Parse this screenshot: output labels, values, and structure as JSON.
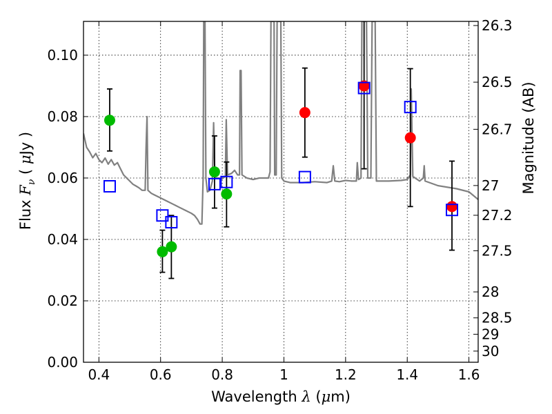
{
  "chart_data": {
    "type": "scatter",
    "xlabel_text": "Wavelength",
    "xlabel_symbol": "λ",
    "xlabel_unit_open": "(",
    "xlabel_unit_mu": "μ",
    "xlabel_unit_rest": "m)",
    "ylabel_text": "Flux",
    "ylabel_symbol": "F",
    "ylabel_sub": "ν",
    "ylabel_unit_open": "(",
    "ylabel_unit_mu": "μ",
    "ylabel_unit_rest": "Jy )",
    "y2label": "Magnitude (AB)",
    "xlim": [
      0.35,
      1.63
    ],
    "ylim": [
      0.0,
      0.111
    ],
    "grid": true,
    "x_ticks": [
      0.4,
      0.6,
      0.8,
      1.0,
      1.2,
      1.4,
      1.6
    ],
    "x_tick_labels": [
      "0.4",
      "0.6",
      "0.8",
      "1",
      "1.2",
      "1.4",
      "1.6"
    ],
    "y_ticks": [
      0.0,
      0.02,
      0.04,
      0.06,
      0.08,
      0.1
    ],
    "y_tick_labels": [
      "0.00",
      "0.02",
      "0.04",
      "0.06",
      "0.08",
      "0.10"
    ],
    "y2_ticks": [
      {
        "label": "26.3",
        "mag": 26.3
      },
      {
        "label": "26.5",
        "mag": 26.5
      },
      {
        "label": "26.7",
        "mag": 26.7
      },
      {
        "label": "27",
        "mag": 27.0
      },
      {
        "label": "27.2",
        "mag": 27.2
      },
      {
        "label": "27.5",
        "mag": 27.5
      },
      {
        "label": "28",
        "mag": 28.0
      },
      {
        "label": "28.5",
        "mag": 28.5
      },
      {
        "label": "29",
        "mag": 29.0
      },
      {
        "label": "30",
        "mag": 30.0
      }
    ],
    "colors": {
      "green": "#00bb00",
      "red": "#ff0000",
      "model_box": "#0000ff",
      "spectrum": "#808080",
      "errorbar": "#000000"
    },
    "series": [
      {
        "points": [
          {
            "x": 0.435,
            "y": 0.0788,
            "err_lo": 0.0688,
            "err_hi": 0.089
          },
          {
            "x": 0.606,
            "y": 0.036,
            "err_lo": 0.0293,
            "err_hi": 0.043
          },
          {
            "x": 0.635,
            "y": 0.0376,
            "err_lo": 0.0273,
            "err_hi": 0.0478
          },
          {
            "x": 0.775,
            "y": 0.062,
            "err_lo": 0.0502,
            "err_hi": 0.0737
          },
          {
            "x": 0.814,
            "y": 0.0548,
            "err_lo": 0.0441,
            "err_hi": 0.0652
          }
        ]
      },
      {
        "points": [
          {
            "x": 1.068,
            "y": 0.0813,
            "err_lo": 0.0668,
            "err_hi": 0.0958
          },
          {
            "x": 1.26,
            "y": 0.09,
            "err_lo": 0.063,
            "err_hi": 0.112
          },
          {
            "x": 1.41,
            "y": 0.0731,
            "err_lo": 0.0507,
            "err_hi": 0.0956
          },
          {
            "x": 1.545,
            "y": 0.0507,
            "err_lo": 0.0365,
            "err_hi": 0.0655
          }
        ]
      },
      {
        "points": [
          {
            "x": 0.435,
            "y": 0.0573
          },
          {
            "x": 0.606,
            "y": 0.0478
          },
          {
            "x": 0.635,
            "y": 0.0456
          },
          {
            "x": 0.775,
            "y": 0.058
          },
          {
            "x": 0.814,
            "y": 0.0587
          },
          {
            "x": 1.068,
            "y": 0.0603
          },
          {
            "x": 1.26,
            "y": 0.0893
          },
          {
            "x": 1.41,
            "y": 0.0831
          },
          {
            "x": 1.545,
            "y": 0.0496
          }
        ]
      }
    ],
    "spectrum": [
      [
        0.35,
        0.0745
      ],
      [
        0.36,
        0.07
      ],
      [
        0.37,
        0.0685
      ],
      [
        0.38,
        0.0666
      ],
      [
        0.39,
        0.068
      ],
      [
        0.4,
        0.066
      ],
      [
        0.41,
        0.065
      ],
      [
        0.42,
        0.0665
      ],
      [
        0.43,
        0.0645
      ],
      [
        0.44,
        0.066
      ],
      [
        0.45,
        0.0642
      ],
      [
        0.46,
        0.065
      ],
      [
        0.47,
        0.063
      ],
      [
        0.48,
        0.061
      ],
      [
        0.49,
        0.06
      ],
      [
        0.5,
        0.059
      ],
      [
        0.51,
        0.058
      ],
      [
        0.52,
        0.0574
      ],
      [
        0.53,
        0.0568
      ],
      [
        0.54,
        0.056
      ],
      [
        0.55,
        0.056
      ],
      [
        0.553,
        0.07
      ],
      [
        0.556,
        0.08
      ],
      [
        0.559,
        0.056
      ],
      [
        0.57,
        0.055
      ],
      [
        0.58,
        0.0545
      ],
      [
        0.6,
        0.0535
      ],
      [
        0.62,
        0.0525
      ],
      [
        0.64,
        0.0515
      ],
      [
        0.66,
        0.0505
      ],
      [
        0.68,
        0.0495
      ],
      [
        0.7,
        0.0485
      ],
      [
        0.71,
        0.0478
      ],
      [
        0.72,
        0.0465
      ],
      [
        0.728,
        0.045
      ],
      [
        0.734,
        0.045
      ],
      [
        0.738,
        0.06
      ],
      [
        0.74,
        0.111
      ],
      [
        0.744,
        0.111
      ],
      [
        0.747,
        0.06
      ],
      [
        0.752,
        0.0555
      ],
      [
        0.76,
        0.056
      ],
      [
        0.768,
        0.059
      ],
      [
        0.772,
        0.078
      ],
      [
        0.776,
        0.06
      ],
      [
        0.79,
        0.06
      ],
      [
        0.8,
        0.0598
      ],
      [
        0.81,
        0.0605
      ],
      [
        0.813,
        0.079
      ],
      [
        0.817,
        0.061
      ],
      [
        0.83,
        0.0615
      ],
      [
        0.84,
        0.0625
      ],
      [
        0.85,
        0.061
      ],
      [
        0.856,
        0.061
      ],
      [
        0.858,
        0.095
      ],
      [
        0.861,
        0.095
      ],
      [
        0.864,
        0.061
      ],
      [
        0.88,
        0.06
      ],
      [
        0.9,
        0.0595
      ],
      [
        0.92,
        0.06
      ],
      [
        0.94,
        0.06
      ],
      [
        0.95,
        0.06
      ],
      [
        0.955,
        0.062
      ],
      [
        0.958,
        0.111
      ],
      [
        0.968,
        0.111
      ],
      [
        0.97,
        0.061
      ],
      [
        0.975,
        0.061
      ],
      [
        0.978,
        0.111
      ],
      [
        0.99,
        0.111
      ],
      [
        0.993,
        0.06
      ],
      [
        1.0,
        0.059
      ],
      [
        1.02,
        0.0585
      ],
      [
        1.06,
        0.0585
      ],
      [
        1.1,
        0.0588
      ],
      [
        1.14,
        0.0585
      ],
      [
        1.155,
        0.059
      ],
      [
        1.16,
        0.064
      ],
      [
        1.165,
        0.059
      ],
      [
        1.18,
        0.0588
      ],
      [
        1.2,
        0.0592
      ],
      [
        1.22,
        0.059
      ],
      [
        1.235,
        0.059
      ],
      [
        1.238,
        0.065
      ],
      [
        1.242,
        0.0595
      ],
      [
        1.25,
        0.06
      ],
      [
        1.253,
        0.111
      ],
      [
        1.268,
        0.111
      ],
      [
        1.272,
        0.06
      ],
      [
        1.282,
        0.06
      ],
      [
        1.286,
        0.111
      ],
      [
        1.296,
        0.111
      ],
      [
        1.3,
        0.059
      ],
      [
        1.34,
        0.059
      ],
      [
        1.38,
        0.0592
      ],
      [
        1.4,
        0.0595
      ],
      [
        1.41,
        0.061
      ],
      [
        1.413,
        0.089
      ],
      [
        1.418,
        0.0605
      ],
      [
        1.44,
        0.059
      ],
      [
        1.452,
        0.06
      ],
      [
        1.455,
        0.064
      ],
      [
        1.458,
        0.059
      ],
      [
        1.5,
        0.0575
      ],
      [
        1.56,
        0.0565
      ],
      [
        1.6,
        0.0555
      ],
      [
        1.63,
        0.053
      ]
    ]
  }
}
